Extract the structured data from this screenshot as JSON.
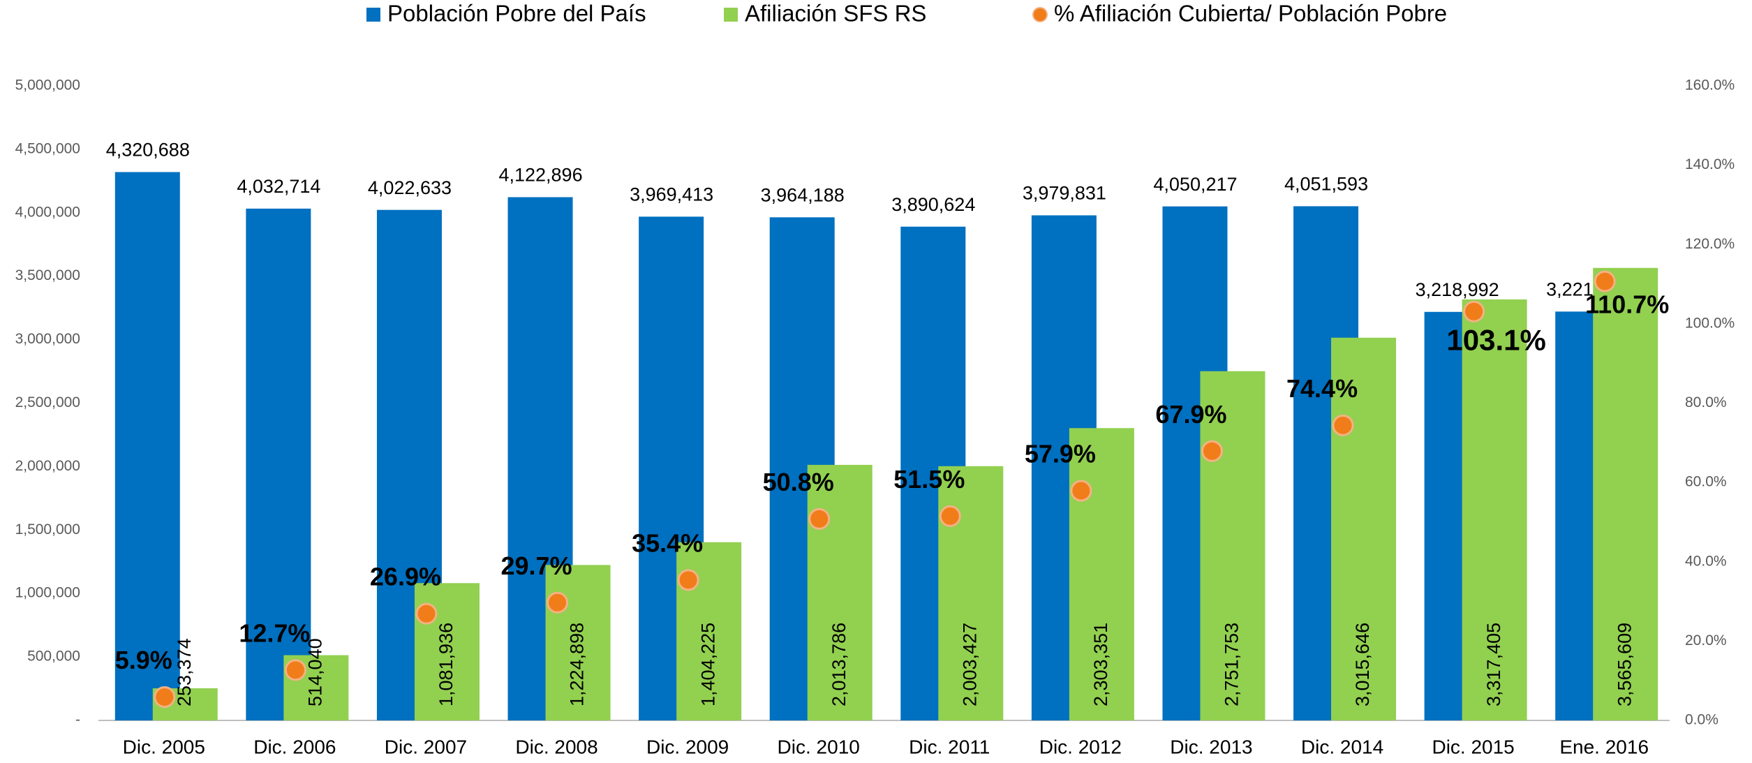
{
  "chart_data": {
    "type": "bar",
    "categories": [
      "Dic. 2005",
      "Dic. 2006",
      "Dic. 2007",
      "Dic. 2008",
      "Dic. 2009",
      "Dic. 2010",
      "Dic. 2011",
      "Dic. 2012",
      "Dic. 2013",
      "Dic. 2014",
      "Dic. 2015",
      "Ene. 2016"
    ],
    "series": [
      {
        "name": "Población Pobre del País",
        "color": "#0070c0",
        "values": [
          4320688,
          4032714,
          4022633,
          4122896,
          3969413,
          3964188,
          3890624,
          3979831,
          4050217,
          4051593,
          3218992,
          3221547
        ],
        "value_labels": [
          "4,320,688",
          "4,032,714",
          "4,022,633",
          "4,122,896",
          "3,969,413",
          "3,964,188",
          "3,890,624",
          "3,979,831",
          "4,050,217",
          "4,051,593",
          "3,218,992",
          "3,221,547"
        ]
      },
      {
        "name": "Afiliación SFS RS",
        "color": "#92d050",
        "values": [
          253374,
          514040,
          1081936,
          1224898,
          1404225,
          2013786,
          2003427,
          2303351,
          2751753,
          3015646,
          3317405,
          3565609
        ],
        "value_labels": [
          "253,374",
          "514,040",
          "1,081,936",
          "1,224,898",
          "1,404,225",
          "2,013,786",
          "2,003,427",
          "2,303,351",
          "2,751,753",
          "3,015,646",
          "3,317,405",
          "3,565,609"
        ]
      },
      {
        "name": "%  Afiliación Cubierta/ Población Pobre",
        "color": "#f07d1a",
        "axis": "y2",
        "values": [
          5.9,
          12.7,
          26.9,
          29.7,
          35.4,
          50.8,
          51.5,
          57.9,
          67.9,
          74.4,
          103.1,
          110.7
        ],
        "value_labels": [
          "5.9%",
          "12.7%",
          "26.9%",
          "29.7%",
          "35.4%",
          "50.8%",
          "51.5%",
          "57.9%",
          "67.9%",
          "74.4%",
          "103.1%",
          "110.7%"
        ]
      }
    ],
    "ylim": [
      0,
      5000000
    ],
    "yticks": [
      {
        "value": 0,
        "label": "-"
      },
      {
        "value": 500000,
        "label": "500,000"
      },
      {
        "value": 1000000,
        "label": "1,000,000"
      },
      {
        "value": 1500000,
        "label": "1,500,000"
      },
      {
        "value": 2000000,
        "label": "2,000,000"
      },
      {
        "value": 2500000,
        "label": "2,500,000"
      },
      {
        "value": 3000000,
        "label": "3,000,000"
      },
      {
        "value": 3500000,
        "label": "3,500,000"
      },
      {
        "value": 4000000,
        "label": "4,000,000"
      },
      {
        "value": 4500000,
        "label": "4,500,000"
      },
      {
        "value": 5000000,
        "label": "5,000,000"
      }
    ],
    "y2lim": [
      0,
      160
    ],
    "y2ticks": [
      {
        "value": 0,
        "label": "0.0%"
      },
      {
        "value": 20,
        "label": "20.0%"
      },
      {
        "value": 40,
        "label": "40.0%"
      },
      {
        "value": 60,
        "label": "60.0%"
      },
      {
        "value": 80,
        "label": "80.0%"
      },
      {
        "value": 100,
        "label": "100.0%"
      },
      {
        "value": 120,
        "label": "120.0%"
      },
      {
        "value": 140,
        "label": "140.0%"
      },
      {
        "value": 160,
        "label": "160.0%"
      }
    ],
    "grid": false,
    "legend": "top"
  }
}
